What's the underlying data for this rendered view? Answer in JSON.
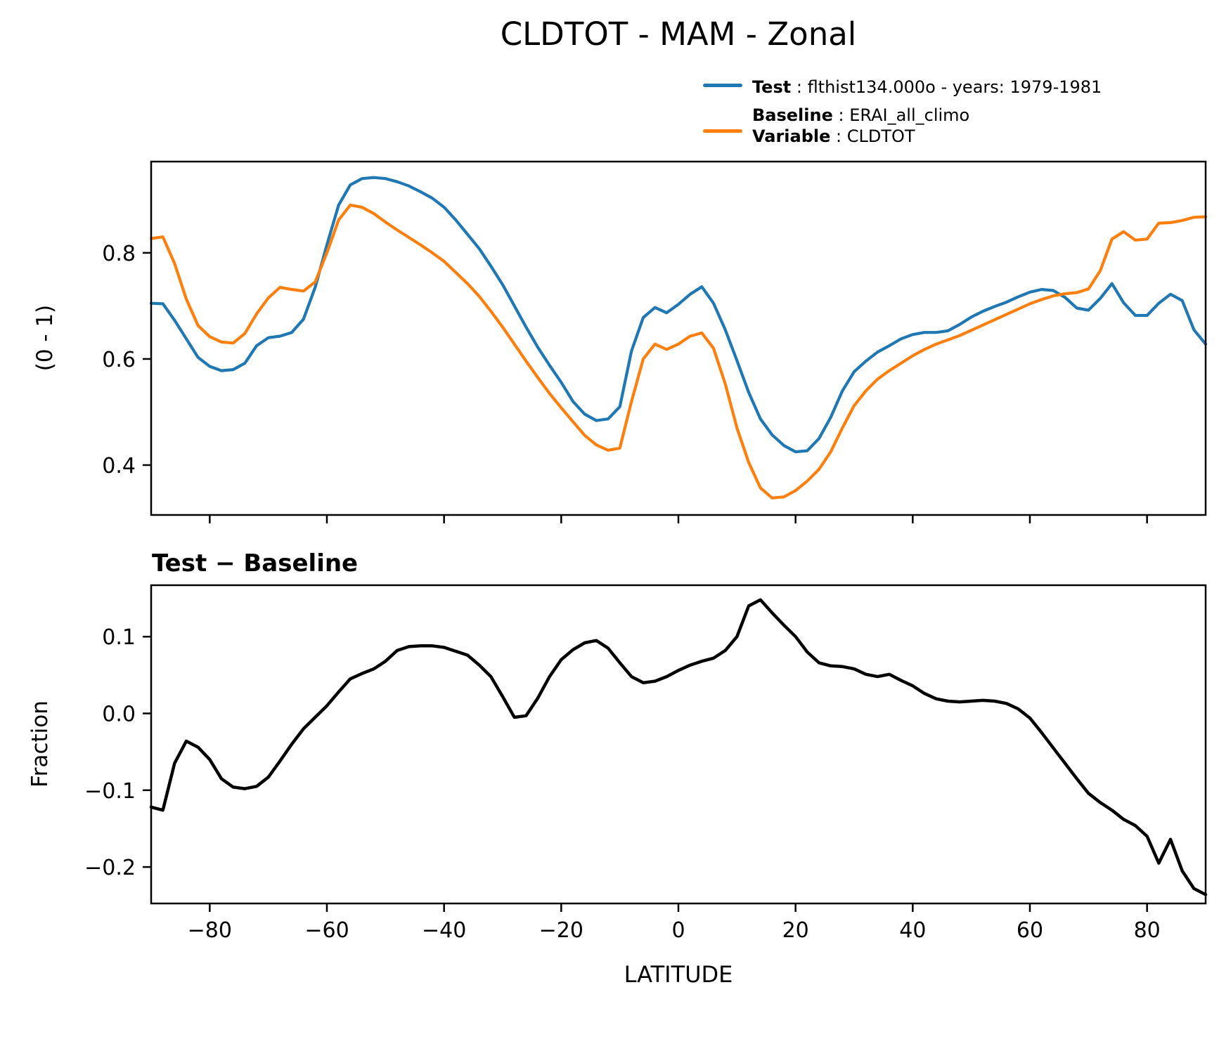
{
  "page": {
    "title": "CLDTOT - MAM - Zonal"
  },
  "legend": {
    "entries": [
      {
        "label_bold": "Test",
        "label_rest": " : flthist134.000o - years: 1979-1981",
        "color": "#1f77b4"
      },
      {
        "label_bold": "Baseline",
        "label_rest": " : ERAI_all_climo",
        "label2_bold": "Variable",
        "label2_rest": " : CLDTOT",
        "color": "#ff7f0e"
      }
    ]
  },
  "chart_data": [
    {
      "type": "line",
      "title": "CLDTOT - MAM - Zonal",
      "xlabel": "",
      "ylabel": "(0 - 1)",
      "xlim": [
        -90,
        90
      ],
      "ylim": [
        0.306,
        0.972
      ],
      "grid": false,
      "legend_position": "outside upper right",
      "yticks": {
        "values": [
          0.8,
          0.6,
          0.4
        ],
        "labels": [
          "0.8",
          "0.6",
          "0.4"
        ]
      },
      "xticks": {
        "values": [
          -80,
          -60,
          -40,
          -20,
          0,
          20,
          40,
          60,
          80
        ],
        "labels": []
      },
      "x": [
        -90,
        -88,
        -86,
        -84,
        -82,
        -80,
        -78,
        -76,
        -74,
        -72,
        -70,
        -68,
        -66,
        -64,
        -62,
        -60,
        -58,
        -56,
        -54,
        -52,
        -50,
        -48,
        -46,
        -44,
        -42,
        -40,
        -38,
        -36,
        -34,
        -32,
        -30,
        -28,
        -26,
        -24,
        -22,
        -20,
        -18,
        -16,
        -14,
        -12,
        -10,
        -8,
        -6,
        -4,
        -2,
        0,
        2,
        4,
        6,
        8,
        10,
        12,
        14,
        16,
        18,
        20,
        22,
        24,
        26,
        28,
        30,
        32,
        34,
        36,
        38,
        40,
        42,
        44,
        46,
        48,
        50,
        52,
        54,
        56,
        58,
        60,
        62,
        64,
        66,
        68,
        70,
        72,
        74,
        76,
        78,
        80,
        82,
        84,
        86,
        88,
        90
      ],
      "series": [
        {
          "name": "Test",
          "color": "#1f77b4",
          "values": [
            0.705,
            0.704,
            0.673,
            0.638,
            0.603,
            0.586,
            0.578,
            0.58,
            0.592,
            0.625,
            0.64,
            0.643,
            0.65,
            0.675,
            0.735,
            0.815,
            0.89,
            0.928,
            0.94,
            0.942,
            0.94,
            0.934,
            0.926,
            0.915,
            0.903,
            0.886,
            0.862,
            0.835,
            0.808,
            0.775,
            0.74,
            0.7,
            0.66,
            0.622,
            0.588,
            0.556,
            0.52,
            0.496,
            0.484,
            0.487,
            0.51,
            0.615,
            0.678,
            0.697,
            0.687,
            0.703,
            0.722,
            0.736,
            0.705,
            0.655,
            0.597,
            0.537,
            0.487,
            0.457,
            0.437,
            0.425,
            0.427,
            0.45,
            0.49,
            0.54,
            0.576,
            0.596,
            0.613,
            0.625,
            0.638,
            0.646,
            0.65,
            0.65,
            0.653,
            0.665,
            0.679,
            0.69,
            0.699,
            0.707,
            0.717,
            0.726,
            0.731,
            0.729,
            0.716,
            0.696,
            0.692,
            0.714,
            0.742,
            0.706,
            0.682,
            0.682,
            0.705,
            0.722,
            0.71,
            0.655,
            0.628
          ]
        },
        {
          "name": "Baseline",
          "color": "#ff7f0e",
          "values": [
            0.827,
            0.83,
            0.78,
            0.713,
            0.663,
            0.642,
            0.632,
            0.63,
            0.648,
            0.685,
            0.715,
            0.735,
            0.731,
            0.728,
            0.745,
            0.8,
            0.862,
            0.89,
            0.886,
            0.874,
            0.858,
            0.843,
            0.829,
            0.815,
            0.8,
            0.784,
            0.763,
            0.742,
            0.718,
            0.69,
            0.66,
            0.628,
            0.596,
            0.565,
            0.535,
            0.508,
            0.482,
            0.456,
            0.438,
            0.428,
            0.432,
            0.52,
            0.6,
            0.628,
            0.618,
            0.628,
            0.643,
            0.649,
            0.62,
            0.553,
            0.47,
            0.405,
            0.357,
            0.338,
            0.34,
            0.352,
            0.37,
            0.392,
            0.425,
            0.47,
            0.512,
            0.54,
            0.562,
            0.578,
            0.592,
            0.606,
            0.618,
            0.628,
            0.636,
            0.644,
            0.654,
            0.664,
            0.674,
            0.684,
            0.694,
            0.704,
            0.712,
            0.719,
            0.723,
            0.725,
            0.732,
            0.766,
            0.826,
            0.84,
            0.824,
            0.826,
            0.856,
            0.857,
            0.861,
            0.867,
            0.868
          ]
        }
      ]
    },
    {
      "type": "line",
      "title": "Test − Baseline",
      "xlabel": "LATITUDE",
      "ylabel": "Fraction",
      "xlim": [
        -90,
        90
      ],
      "ylim": [
        -0.2475,
        0.167
      ],
      "grid": false,
      "yticks": {
        "values": [
          0.1,
          0.0,
          -0.1,
          -0.2
        ],
        "labels": [
          "0.1",
          "0.0",
          "−0.1",
          "−0.2"
        ]
      },
      "xticks": {
        "values": [
          -80,
          -60,
          -40,
          -20,
          0,
          20,
          40,
          60,
          80
        ],
        "labels": [
          "−80",
          "−60",
          "−40",
          "−20",
          "0",
          "20",
          "40",
          "60",
          "80"
        ]
      },
      "x": [
        -90,
        -88,
        -86,
        -84,
        -82,
        -80,
        -78,
        -76,
        -74,
        -72,
        -70,
        -68,
        -66,
        -64,
        -62,
        -60,
        -58,
        -56,
        -54,
        -52,
        -50,
        -48,
        -46,
        -44,
        -42,
        -40,
        -38,
        -36,
        -34,
        -32,
        -30,
        -28,
        -26,
        -24,
        -22,
        -20,
        -18,
        -16,
        -14,
        -12,
        -10,
        -8,
        -6,
        -4,
        -2,
        0,
        2,
        4,
        6,
        8,
        10,
        12,
        14,
        16,
        18,
        20,
        22,
        24,
        26,
        28,
        30,
        32,
        34,
        36,
        38,
        40,
        42,
        44,
        46,
        48,
        50,
        52,
        54,
        56,
        58,
        60,
        62,
        64,
        66,
        68,
        70,
        72,
        74,
        76,
        78,
        80,
        82,
        84,
        86,
        88,
        90
      ],
      "series": [
        {
          "name": "Test − Baseline",
          "color": "#000000",
          "values": [
            -0.122,
            -0.126,
            -0.065,
            -0.036,
            -0.044,
            -0.06,
            -0.085,
            -0.096,
            -0.098,
            -0.095,
            -0.083,
            -0.062,
            -0.04,
            -0.02,
            -0.005,
            0.01,
            0.028,
            0.045,
            0.052,
            0.058,
            0.068,
            0.082,
            0.087,
            0.088,
            0.088,
            0.086,
            0.081,
            0.076,
            0.063,
            0.048,
            0.022,
            -0.005,
            -0.003,
            0.02,
            0.048,
            0.07,
            0.083,
            0.092,
            0.095,
            0.085,
            0.066,
            0.048,
            0.04,
            0.042,
            0.048,
            0.056,
            0.063,
            0.068,
            0.072,
            0.082,
            0.1,
            0.14,
            0.148,
            0.131,
            0.115,
            0.1,
            0.08,
            0.066,
            0.062,
            0.061,
            0.058,
            0.051,
            0.048,
            0.051,
            0.043,
            0.036,
            0.026,
            0.019,
            0.016,
            0.015,
            0.016,
            0.017,
            0.016,
            0.013,
            0.006,
            -0.006,
            -0.025,
            -0.045,
            -0.065,
            -0.085,
            -0.104,
            -0.116,
            -0.126,
            -0.138,
            -0.146,
            -0.16,
            -0.195,
            -0.164,
            -0.205,
            -0.228,
            -0.236
          ]
        }
      ]
    }
  ]
}
